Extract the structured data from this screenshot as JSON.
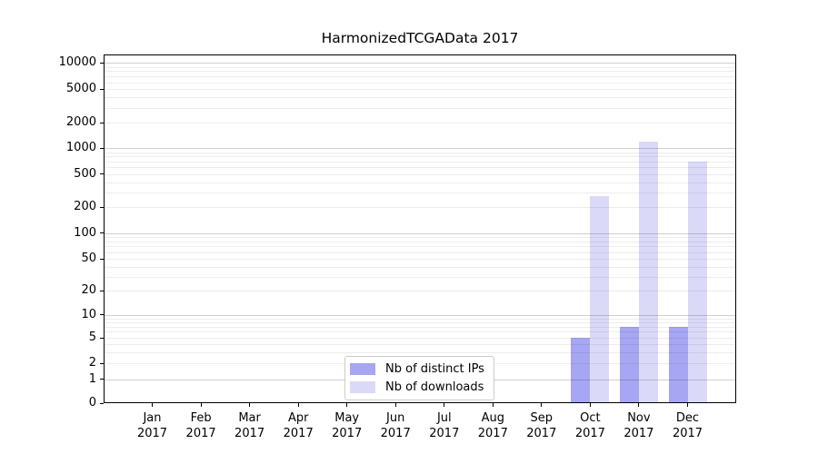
{
  "chart_data": {
    "type": "bar",
    "title": "HarmonizedTCGAData 2017",
    "categories": [
      "Jan 2017",
      "Feb 2017",
      "Mar 2017",
      "Apr 2017",
      "May 2017",
      "Jun 2017",
      "Jul 2017",
      "Aug 2017",
      "Sep 2017",
      "Oct 2017",
      "Nov 2017",
      "Dec 2017"
    ],
    "series": [
      {
        "id": "distinct-ips",
        "name": "Nb of distinct IPs",
        "color": "#a6a6f2",
        "values": [
          0,
          0,
          0,
          0,
          0,
          0,
          0,
          0,
          0,
          5,
          7,
          7
        ]
      },
      {
        "id": "downloads",
        "name": "Nb of downloads",
        "color": "#dadaf8",
        "values": [
          0,
          0,
          0,
          0,
          0,
          0,
          0,
          0,
          0,
          270,
          1200,
          700
        ]
      }
    ],
    "yaxis": {
      "scale": "symlog",
      "ticks": [
        0,
        1,
        2,
        5,
        10,
        20,
        50,
        100,
        200,
        500,
        1000,
        2000,
        5000,
        10000
      ],
      "range": [
        0,
        10000
      ]
    },
    "xlabel": "",
    "ylabel": "",
    "grid": "horizontal only; darker lines at powers of ten, faint log minor lines",
    "legend_position": "lower center"
  },
  "colors": {
    "grid_major": "rgba(0,0,0,0.18)",
    "grid_minor": "rgba(0,0,0,0.07)",
    "axis": "#000000",
    "legend_border": "#cccccc",
    "background": "#ffffff"
  }
}
